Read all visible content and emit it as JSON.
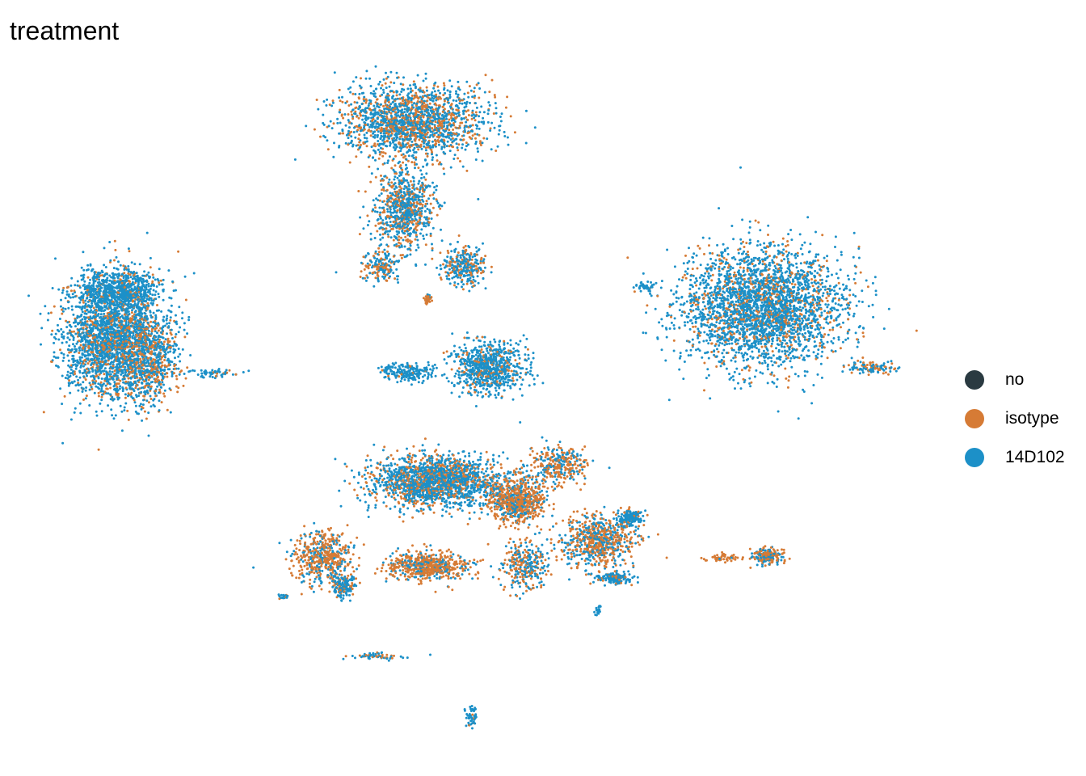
{
  "chart_data": {
    "type": "scatter",
    "title": "treatment",
    "xlabel": "",
    "ylabel": "",
    "grid": false,
    "axes_visible": false,
    "legend_position": "right",
    "series": [
      {
        "name": "no",
        "color": "#2A3A41",
        "values": []
      },
      {
        "name": "isotype",
        "color": "#D67B35",
        "values": []
      },
      {
        "name": "14D102",
        "color": "#1C90C8",
        "values": []
      }
    ]
  }
}
